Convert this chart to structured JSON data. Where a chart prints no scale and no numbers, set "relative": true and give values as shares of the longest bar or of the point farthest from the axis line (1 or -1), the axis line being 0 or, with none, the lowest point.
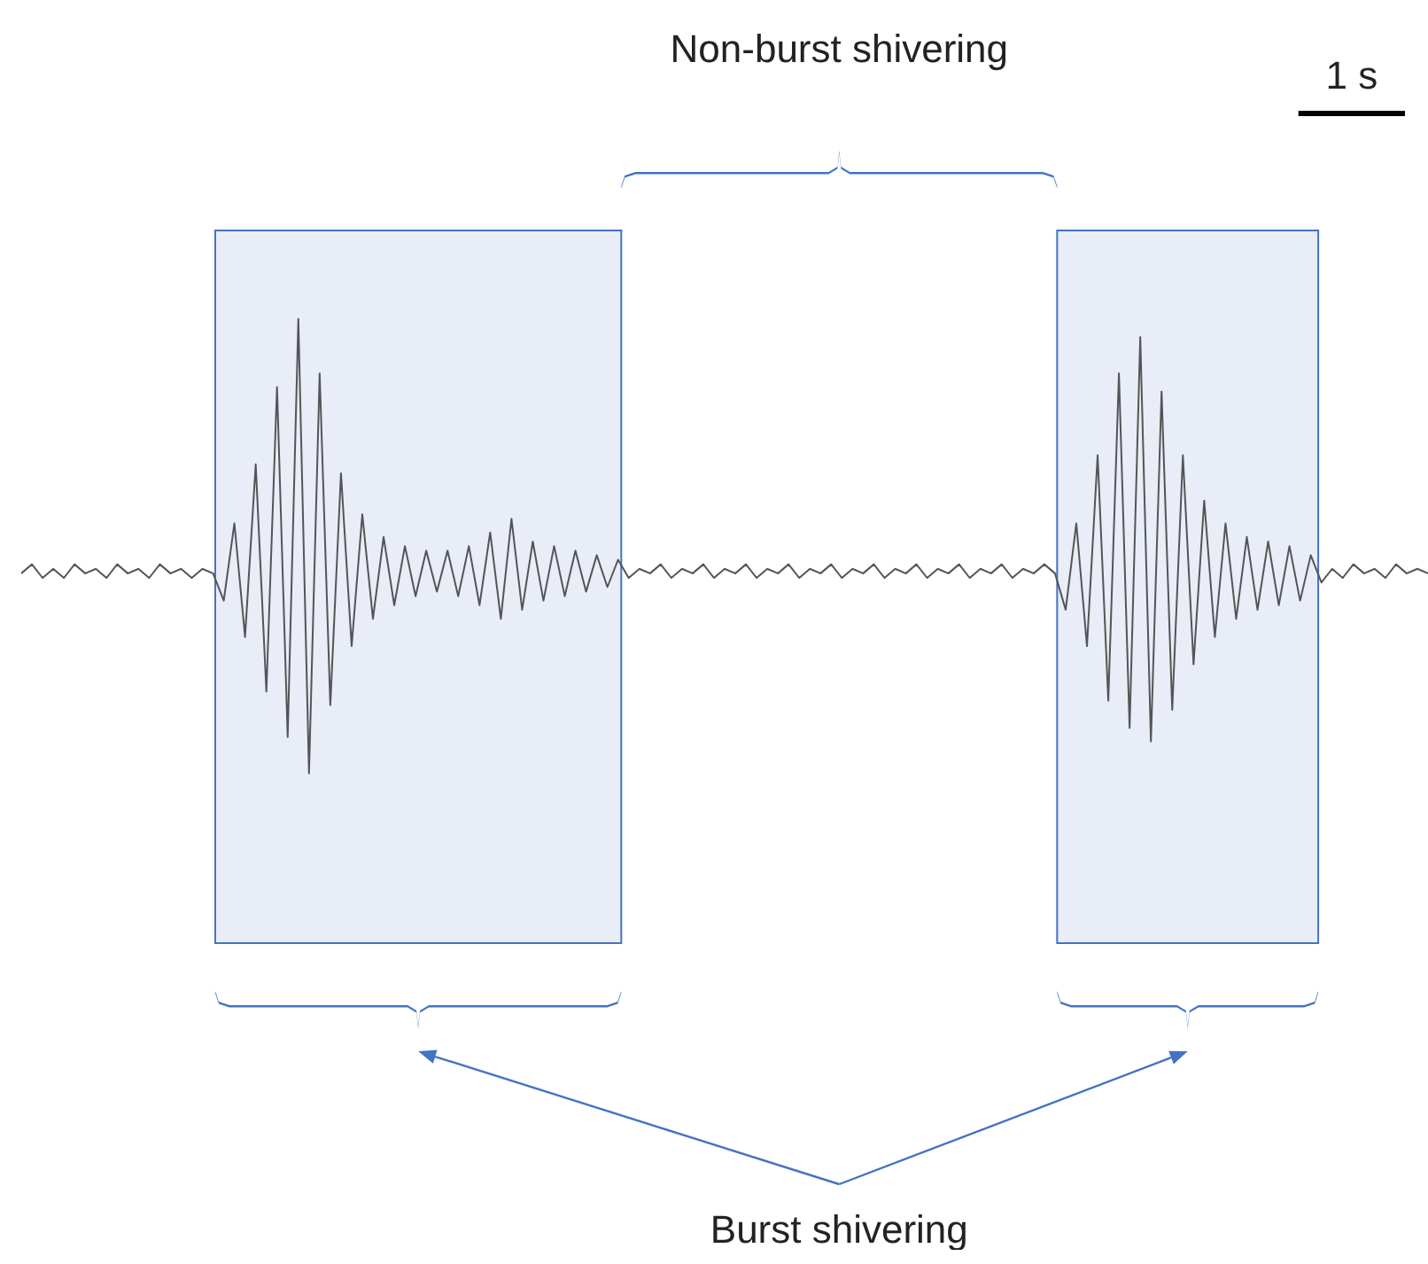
{
  "chart_data": {
    "type": "line",
    "relative": true,
    "categories": [
      null,
      null,
      null,
      null,
      null,
      null,
      null,
      null,
      null,
      null,
      null,
      null,
      null,
      null,
      null,
      null,
      null,
      null,
      null,
      null,
      null,
      null,
      null,
      null,
      null,
      null,
      null,
      null,
      null,
      null,
      null,
      null,
      null,
      null,
      null,
      null,
      null,
      null,
      null,
      null,
      null,
      null,
      null,
      null,
      null,
      null,
      null,
      null,
      null,
      null,
      null,
      null,
      null,
      null,
      null,
      null,
      null,
      null,
      null,
      null,
      null,
      null,
      null,
      null,
      null,
      null,
      null,
      null,
      null,
      null,
      null,
      null,
      null,
      null,
      null,
      null,
      null,
      null,
      null,
      null,
      null,
      null,
      null,
      null,
      null,
      null,
      null,
      null,
      null,
      null,
      null,
      null,
      null,
      null,
      null,
      null,
      null,
      null,
      null,
      null,
      null,
      null,
      null,
      null,
      null,
      null,
      null,
      null,
      null,
      null,
      null,
      null,
      null,
      null,
      null,
      null,
      null,
      null,
      null,
      null,
      null,
      null,
      null,
      null,
      null,
      null,
      null,
      null,
      null,
      null,
      null,
      null,
      null
    ],
    "series": [
      {
        "color": "#555555",
        "values": [
          0.44,
          0.46,
          0.43,
          0.45,
          0.43,
          0.46,
          0.44,
          0.45,
          0.43,
          0.46,
          0.44,
          0.45,
          0.43,
          0.46,
          0.44,
          0.45,
          0.43,
          0.45,
          0.44,
          0.38,
          0.55,
          0.3,
          0.68,
          0.18,
          0.85,
          0.08,
          1.0,
          0,
          0.88,
          0.15,
          0.66,
          0.28,
          0.57,
          0.34,
          0.52,
          0.37,
          0.5,
          0.39,
          0.49,
          0.4,
          0.49,
          0.39,
          0.5,
          0.37,
          0.53,
          0.34,
          0.56,
          0.36,
          0.51,
          0.38,
          0.5,
          0.39,
          0.49,
          0.4,
          0.48,
          0.41,
          0.47,
          0.43,
          0.45,
          0.44,
          0.46,
          0.43,
          0.45,
          0.44,
          0.46,
          0.43,
          0.45,
          0.44,
          0.46,
          0.43,
          0.45,
          0.44,
          0.46,
          0.43,
          0.45,
          0.44,
          0.46,
          0.43,
          0.45,
          0.44,
          0.46,
          0.43,
          0.45,
          0.44,
          0.46,
          0.43,
          0.45,
          0.44,
          0.46,
          0.43,
          0.45,
          0.44,
          0.46,
          0.43,
          0.45,
          0.44,
          0.46,
          0.44,
          0.36,
          0.55,
          0.28,
          0.7,
          0.16,
          0.88,
          0.1,
          0.96,
          0.07,
          0.84,
          0.14,
          0.7,
          0.24,
          0.6,
          0.3,
          0.55,
          0.34,
          0.52,
          0.36,
          0.51,
          0.37,
          0.5,
          0.38,
          0.48,
          0.42,
          0.45,
          0.43,
          0.46,
          0.44,
          0.45,
          0.43,
          0.46,
          0.44,
          0.45,
          0.44
        ]
      }
    ],
    "annotations": [
      "Non-burst shivering",
      "Burst shivering",
      "1 s"
    ]
  }
}
